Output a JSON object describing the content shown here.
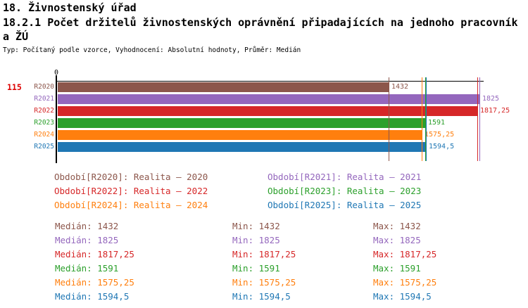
{
  "header": {
    "title": "18. Živnostenský úřad",
    "subtitle_line1": "18.2.1 Počet držitelů živnostenských oprávnění připadajících na jednoho pracovník",
    "subtitle_line2": "a ŽÚ",
    "meta": "Typ: Počítaný podle vzorce, Vyhodnocení: Absolutní hodnoty, Průměr: Medián"
  },
  "chart": {
    "row_indicator": "115",
    "row_indicator_color": "#dd0000",
    "axis_origin_label": "0",
    "axis_color": "#000000"
  },
  "chart_data": {
    "type": "bar",
    "orientation": "horizontal",
    "title": "18.2.1 Počet držitelů živnostenských oprávnění připadajících na jednoho pracovník a ŽÚ",
    "categories": [
      "R2020",
      "R2021",
      "R2022",
      "R2023",
      "R2024",
      "R2025"
    ],
    "series": [
      {
        "name": "R2020",
        "value": 1432,
        "value_label": "1432",
        "color": "#8C564B"
      },
      {
        "name": "R2021",
        "value": 1825,
        "value_label": "1825",
        "color": "#9467BD"
      },
      {
        "name": "R2022",
        "value": 1817.25,
        "value_label": "1817,25",
        "color": "#D62728"
      },
      {
        "name": "R2023",
        "value": 1591,
        "value_label": "1591",
        "color": "#2CA02C"
      },
      {
        "name": "R2024",
        "value": 1575.25,
        "value_label": "1575,25",
        "color": "#FF7F0E"
      },
      {
        "name": "R2025",
        "value": 1594.5,
        "value_label": "1594,5",
        "color": "#1F77B4"
      }
    ],
    "xlim": [
      0,
      1825
    ],
    "x_axis_origin_tick": "0",
    "grid": false,
    "median_marker_lines_at_values": [
      1432,
      1825,
      1817.25,
      1591,
      1575.25,
      1594.5
    ],
    "legend_position": "below"
  },
  "legend": {
    "items": [
      {
        "text": "Období[R2020]: Realita – 2020",
        "color": "#8C564B"
      },
      {
        "text": "Období[R2021]: Realita – 2021",
        "color": "#9467BD"
      },
      {
        "text": "Období[R2022]: Realita – 2022",
        "color": "#D62728"
      },
      {
        "text": "Období[R2023]: Realita – 2023",
        "color": "#2CA02C"
      },
      {
        "text": "Období[R2024]: Realita – 2024",
        "color": "#FF7F0E"
      },
      {
        "text": "Období[R2025]: Realita – 2025",
        "color": "#1F77B4"
      }
    ]
  },
  "stats": {
    "rows": [
      {
        "color": "#8C564B",
        "median": "Medián: 1432",
        "min": "Min: 1432",
        "max": "Max: 1432"
      },
      {
        "color": "#9467BD",
        "median": "Medián: 1825",
        "min": "Min: 1825",
        "max": "Max: 1825"
      },
      {
        "color": "#D62728",
        "median": "Medián: 1817,25",
        "min": "Min: 1817,25",
        "max": "Max: 1817,25"
      },
      {
        "color": "#2CA02C",
        "median": "Medián: 1591",
        "min": "Min: 1591",
        "max": "Max: 1591"
      },
      {
        "color": "#FF7F0E",
        "median": "Medián: 1575,25",
        "min": "Min: 1575,25",
        "max": "Max: 1575,25"
      },
      {
        "color": "#1F77B4",
        "median": "Medián: 1594,5",
        "min": "Min: 1594,5",
        "max": "Max: 1594,5"
      }
    ]
  }
}
